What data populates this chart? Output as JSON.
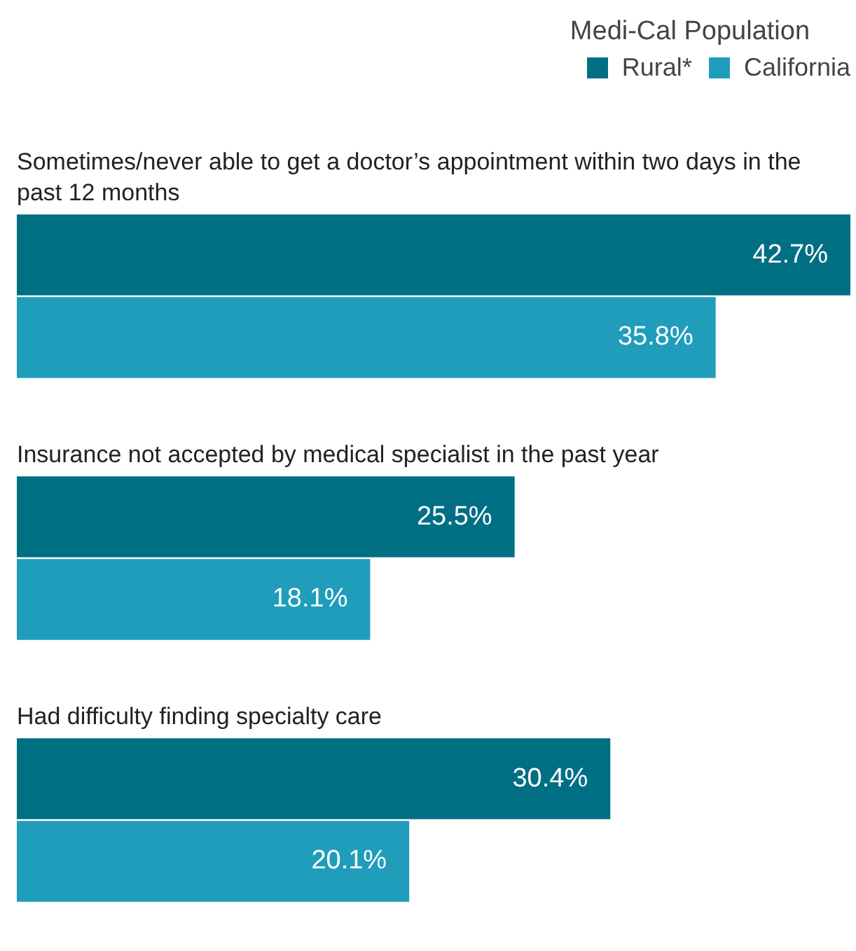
{
  "chart_data": {
    "type": "bar",
    "orientation": "horizontal",
    "legend_title": "Medi-Cal Population",
    "legend": "top right",
    "categories": [
      "Sometimes/never able to get a doctor’s appointment within two days in the past 12 months",
      "Insurance not accepted by medical specialist in the past year",
      "Had difficulty finding specialty care"
    ],
    "series": [
      {
        "name": "Rural*",
        "color": "#006f84",
        "values": [
          42.7,
          25.5,
          30.4
        ],
        "value_labels": [
          "42.7%",
          "25.5%",
          "30.4%"
        ]
      },
      {
        "name": "California",
        "color": "#1f9dbb",
        "values": [
          35.8,
          18.1,
          20.1
        ],
        "value_labels": [
          "35.8%",
          "18.1%",
          "20.1%"
        ]
      }
    ]
  }
}
